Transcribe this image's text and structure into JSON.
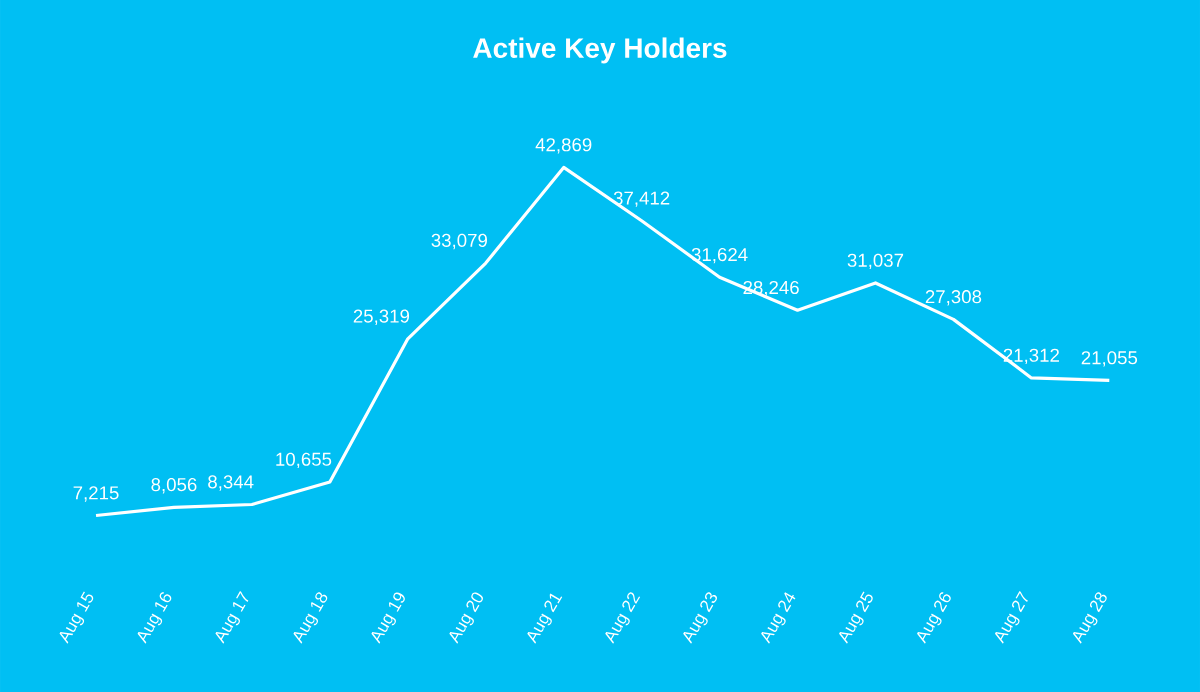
{
  "chart_data": {
    "type": "line",
    "title": "Active Key Holders",
    "categories": [
      "Aug 15",
      "Aug 16",
      "Aug 17",
      "Aug 18",
      "Aug 19",
      "Aug 20",
      "Aug 21",
      "Aug 22",
      "Aug 23",
      "Aug 24",
      "Aug 25",
      "Aug 26",
      "Aug 27",
      "Aug 28"
    ],
    "values": [
      7215,
      8056,
      8344,
      10655,
      25319,
      33079,
      42869,
      37412,
      31624,
      28246,
      31037,
      27308,
      21312,
      21055
    ],
    "value_labels": [
      "7,215",
      "8,056",
      "8,344",
      "10,655",
      "25,319",
      "33,079",
      "42,869",
      "37,412",
      "31,624",
      "28,246",
      "31,037",
      "27,308",
      "21,312",
      "21,055"
    ],
    "color": "#ffffff",
    "grid": false,
    "marker": "none",
    "line_style": "solid"
  }
}
